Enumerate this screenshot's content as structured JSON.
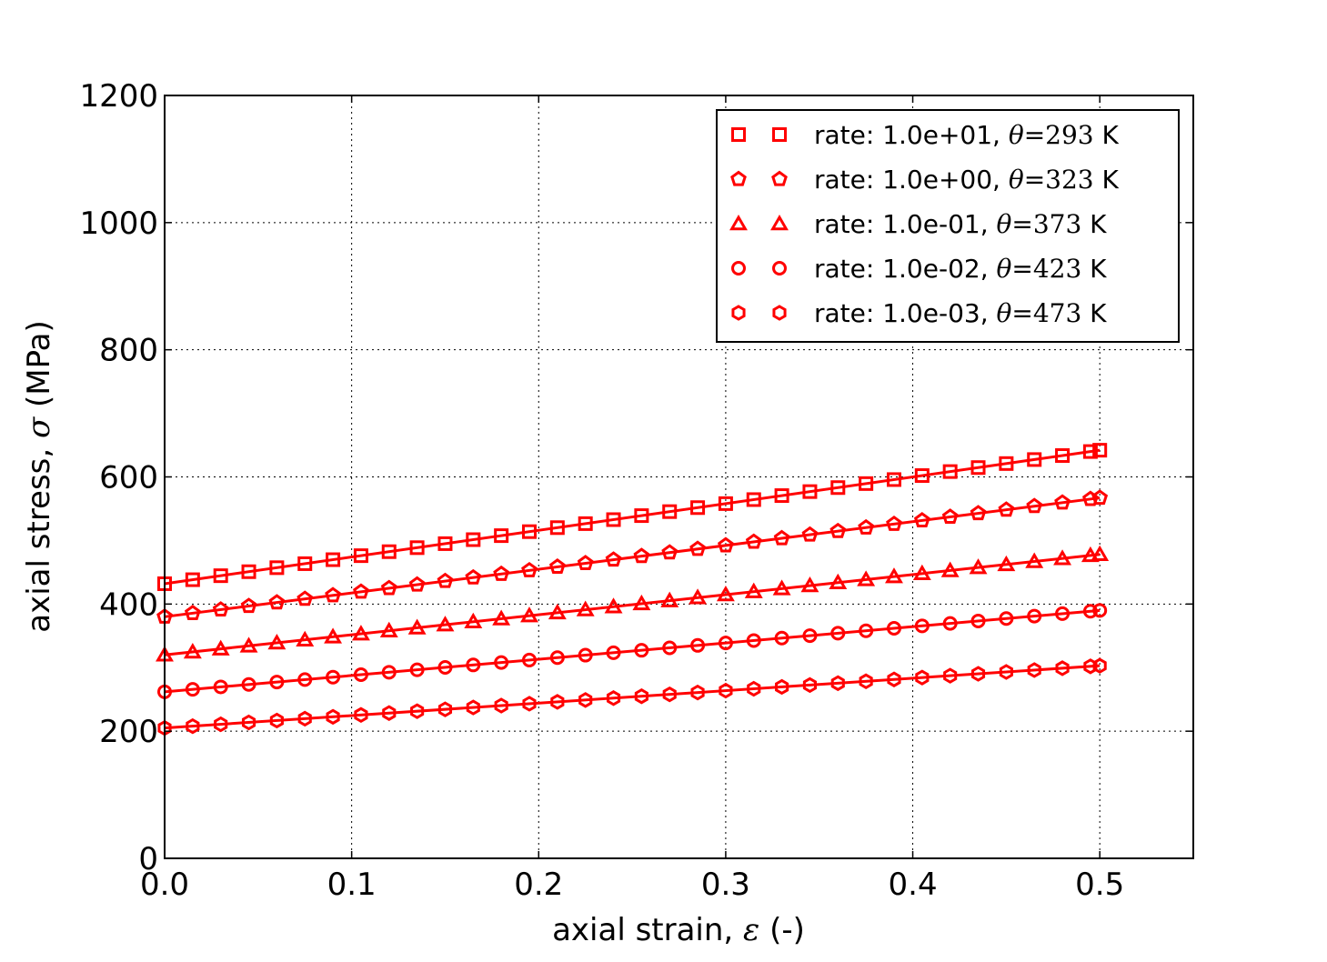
{
  "chart_data": {
    "type": "line",
    "xlabel": "axial strain, ε (-)",
    "xlabel_parts": {
      "prefix": "axial strain, ",
      "symbol": "ε",
      "suffix": " (-)"
    },
    "ylabel": "axial stress, σ (MPa)",
    "ylabel_parts": {
      "prefix": "axial stress, ",
      "symbol": "σ",
      "suffix": " (MPa)"
    },
    "xlim": [
      0.0,
      0.55
    ],
    "ylim": [
      0,
      1200
    ],
    "xticks": [
      0.0,
      0.1,
      0.2,
      0.3,
      0.4,
      0.5
    ],
    "xtick_labels": [
      "0.0",
      "0.1",
      "0.2",
      "0.3",
      "0.4",
      "0.5"
    ],
    "yticks": [
      0,
      200,
      400,
      600,
      800,
      1000,
      1200
    ],
    "ytick_labels": [
      "0",
      "200",
      "400",
      "600",
      "800",
      "1000",
      "1200"
    ],
    "grid": true,
    "legend_position": "top-right",
    "color": "#ff0000",
    "marker_spacing": 0.015,
    "x_max": 0.5,
    "series": [
      {
        "name": "rate: 1.0e-03, θ=473 K",
        "label_prefix": "rate: 1.0e-03, ",
        "theta_label": "θ",
        "theta_value": "=473",
        "unit": " K",
        "marker": "hexagon",
        "start": 205,
        "end": 303
      },
      {
        "name": "rate: 1.0e-02, θ=423 K",
        "label_prefix": "rate: 1.0e-02, ",
        "theta_label": "θ",
        "theta_value": "=423",
        "unit": " K",
        "marker": "circle",
        "start": 262,
        "end": 390
      },
      {
        "name": "rate: 1.0e-01, θ=373 K",
        "label_prefix": "rate: 1.0e-01, ",
        "theta_label": "θ",
        "theta_value": "=373",
        "unit": " K",
        "marker": "triangle",
        "start": 320,
        "end": 478
      },
      {
        "name": "rate: 1.0e+00, θ=323 K",
        "label_prefix": "rate: 1.0e+00, ",
        "theta_label": "θ",
        "theta_value": "=323",
        "unit": " K",
        "marker": "pentagon",
        "start": 380,
        "end": 567
      },
      {
        "name": "rate: 1.0e+01, θ=293 K",
        "label_prefix": "rate: 1.0e+01, ",
        "theta_label": "θ",
        "theta_value": "=293",
        "unit": " K",
        "marker": "square",
        "start": 432,
        "end": 642
      }
    ]
  }
}
